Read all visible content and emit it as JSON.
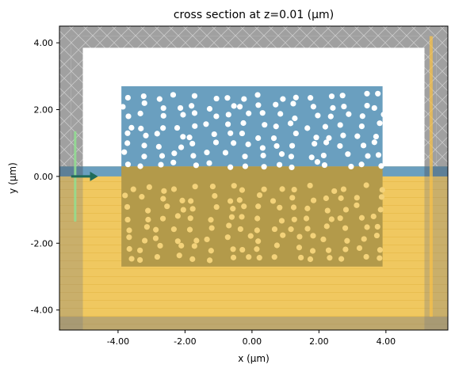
{
  "chart_data": {
    "type": "scatter",
    "title": "cross section at z=0.01 (µm)",
    "xlabel": "x (µm)",
    "ylabel": "y (µm)",
    "xlim": [
      -5.75,
      5.85
    ],
    "ylim": [
      -4.6,
      4.5
    ],
    "xticks": [
      -4.0,
      -2.0,
      0.0,
      2.0,
      4.0
    ],
    "xtick_labels": [
      "-4.00",
      "-2.00",
      "0.00",
      "2.00",
      "4.00"
    ],
    "yticks": [
      4.0,
      2.0,
      0.0,
      -2.0,
      -4.0
    ],
    "ytick_labels": [
      "4.00",
      "2.00",
      "0.00",
      "-2.00",
      "-4.00"
    ],
    "grid": false,
    "simulation_domain": {
      "x": [
        -5.4,
        5.5
      ],
      "y": [
        -4.2,
        4.2
      ]
    },
    "pml_thickness": 0.35,
    "structures": {
      "substrate": {
        "x": [
          -5.4,
          5.5
        ],
        "y": [
          -4.2,
          0.3
        ],
        "color": "#f0c860"
      },
      "membrane_slab": {
        "x": [
          -5.4,
          5.5
        ],
        "y": [
          0.0,
          0.3
        ],
        "color": "#6a9fbf"
      },
      "upper_block": {
        "x": [
          -3.9,
          3.9
        ],
        "y": [
          0.3,
          2.7
        ],
        "color": "#6a9fbf"
      },
      "lower_block": {
        "x": [
          -3.9,
          3.9
        ],
        "y": [
          -2.7,
          0.3
        ],
        "color": "#b39a4a"
      }
    },
    "source": {
      "x": -5.28,
      "y": [
        -1.35,
        1.35
      ],
      "color": "#90e090"
    },
    "monitor": {
      "x": 5.35,
      "y": [
        -4.2,
        4.2
      ],
      "color": "#f5c04a"
    },
    "direction_arrow": {
      "x": [
        -5.4,
        -4.6
      ],
      "y": 0.0,
      "color": "#1f6b5a"
    },
    "holes": {
      "upper": {
        "rows": 8,
        "cols": 16,
        "y_range": [
          0.35,
          2.4
        ],
        "x_range": [
          -3.7,
          3.8
        ],
        "radius": 0.085
      },
      "lower": {
        "rows": 8,
        "cols": 16,
        "y_range": [
          -2.45,
          -0.35
        ],
        "x_range": [
          -3.7,
          3.8
        ],
        "radius": 0.085
      }
    }
  }
}
